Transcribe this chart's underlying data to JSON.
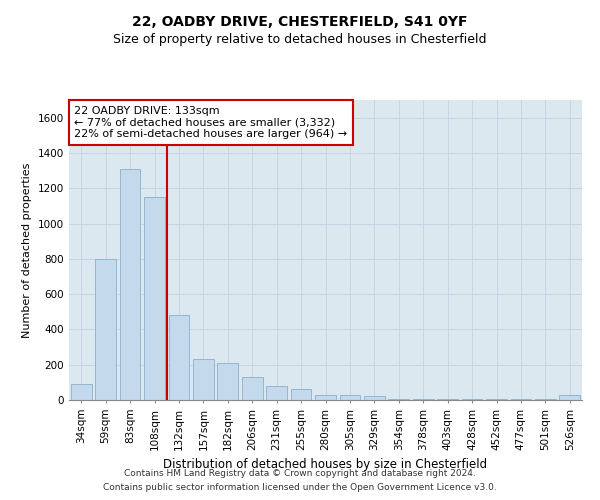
{
  "title1": "22, OADBY DRIVE, CHESTERFIELD, S41 0YF",
  "title2": "Size of property relative to detached houses in Chesterfield",
  "xlabel": "Distribution of detached houses by size in Chesterfield",
  "ylabel": "Number of detached properties",
  "categories": [
    "34sqm",
    "59sqm",
    "83sqm",
    "108sqm",
    "132sqm",
    "157sqm",
    "182sqm",
    "206sqm",
    "231sqm",
    "255sqm",
    "280sqm",
    "305sqm",
    "329sqm",
    "354sqm",
    "378sqm",
    "403sqm",
    "428sqm",
    "452sqm",
    "477sqm",
    "501sqm",
    "526sqm"
  ],
  "values": [
    90,
    800,
    1310,
    1150,
    480,
    230,
    210,
    130,
    80,
    60,
    30,
    30,
    20,
    5,
    5,
    5,
    5,
    5,
    5,
    5,
    30
  ],
  "bar_color": "#c5d9ed",
  "bar_edge_color": "#8ab0d0",
  "marker_color": "#cc0000",
  "annotation_line1": "22 OADBY DRIVE: 133sqm",
  "annotation_line2": "← 77% of detached houses are smaller (3,332)",
  "annotation_line3": "22% of semi-detached houses are larger (964) →",
  "annotation_box_color": "#ffffff",
  "annotation_border_color": "#cc0000",
  "ylim": [
    0,
    1700
  ],
  "yticks": [
    0,
    200,
    400,
    600,
    800,
    1000,
    1200,
    1400,
    1600
  ],
  "grid_color": "#c8d4e4",
  "background_color": "#dce8f0",
  "footnote1": "Contains HM Land Registry data © Crown copyright and database right 2024.",
  "footnote2": "Contains public sector information licensed under the Open Government Licence v3.0.",
  "title1_fontsize": 10,
  "title2_fontsize": 9,
  "xlabel_fontsize": 8.5,
  "ylabel_fontsize": 8,
  "annotation_fontsize": 8,
  "tick_fontsize": 7.5,
  "footnote_fontsize": 6.5
}
